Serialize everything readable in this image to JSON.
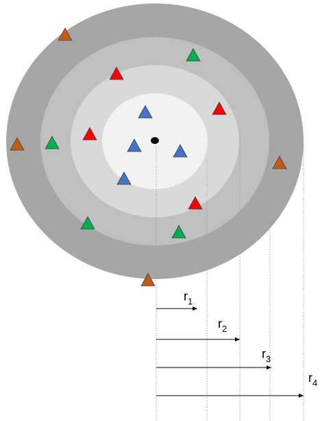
{
  "radius_labels": [
    {
      "base": "r",
      "sub": "1"
    },
    {
      "base": "r",
      "sub": "2"
    },
    {
      "base": "r",
      "sub": "3"
    },
    {
      "base": "r",
      "sub": "4"
    }
  ]
}
